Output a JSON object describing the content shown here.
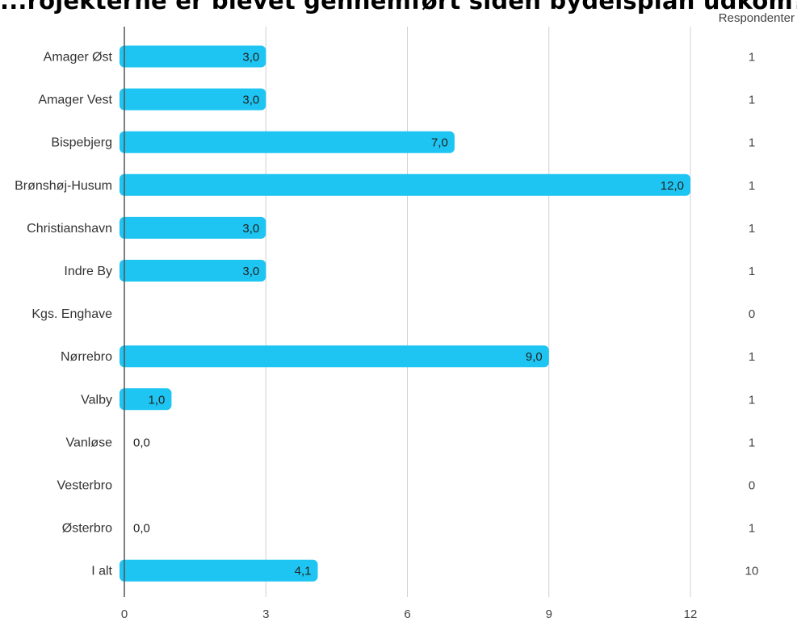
{
  "title": "...rojekterne er blevet gennemført siden bydelsplan udkom?",
  "respondents_header": "Respondenter",
  "colors": {
    "bar": "#1ec5f2",
    "grid": "#d0d0d0",
    "axis": "#555555"
  },
  "chart_data": {
    "type": "bar",
    "orientation": "horizontal",
    "title": "...rojekterne er blevet gennemført siden bydelsplan udkom?",
    "categories": [
      "Amager Øst",
      "Amager Vest",
      "Bispebjerg",
      "Brønshøj-Husum",
      "Christianshavn",
      "Indre By",
      "Kgs. Enghave",
      "Nørrebro",
      "Valby",
      "Vanløse",
      "Vesterbro",
      "Østerbro",
      "I alt"
    ],
    "values": [
      3.0,
      3.0,
      7.0,
      12.0,
      3.0,
      3.0,
      null,
      9.0,
      1.0,
      0.0,
      null,
      0.0,
      4.1
    ],
    "value_labels": [
      "3,0",
      "3,0",
      "7,0",
      "12,0",
      "3,0",
      "3,0",
      "",
      "9,0",
      "1,0",
      "0,0",
      "",
      "0,0",
      "4,1"
    ],
    "respondents": [
      "1",
      "1",
      "1",
      "1",
      "1",
      "1",
      "0",
      "1",
      "1",
      "1",
      "0",
      "1",
      "10"
    ],
    "xticks": [
      0,
      3,
      6,
      9,
      12
    ],
    "xtick_labels": [
      "0",
      "3",
      "6",
      "9",
      "12"
    ],
    "xlim": [
      0,
      12
    ],
    "grid": true,
    "legend": "none"
  }
}
